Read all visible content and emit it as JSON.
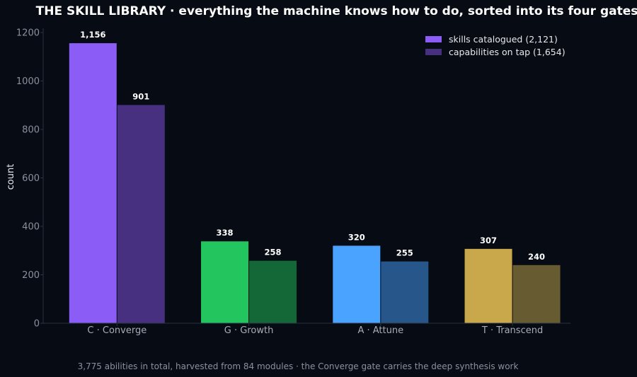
{
  "chart_data": {
    "type": "bar",
    "title": "THE SKILL LIBRARY  ·  everything the machine knows how to do, sorted into its four gates",
    "xlabel": "",
    "ylabel": "count",
    "categories": [
      "C · Converge",
      "G · Growth",
      "A · Attune",
      "T · Transcend"
    ],
    "series": [
      {
        "name": "skills catalogued (2,121)",
        "values": [
          1156,
          338,
          320,
          307
        ],
        "labels": [
          "1,156",
          "338",
          "320",
          "307"
        ],
        "colors": [
          "#8b5cf6",
          "#22c55e",
          "#4aa3ff",
          "#c9a84c"
        ]
      },
      {
        "name": "capabilities on tap (1,654)",
        "values": [
          901,
          258,
          255,
          240
        ],
        "labels": [
          "901",
          "258",
          "255",
          "240"
        ],
        "colors": [
          "#47307f",
          "#146838",
          "#27578a",
          "#665b31"
        ]
      }
    ],
    "ylim": [
      0,
      1200
    ],
    "yticks": [
      0,
      200,
      400,
      600,
      800,
      1000,
      1200
    ],
    "grid": false,
    "legend_position": "top-right",
    "footnote": "3,775 abilities in total, harvested from 84 modules  ·  the Converge gate carries the deep synthesis work",
    "colors": {
      "background": "#070b13",
      "axis": "#2a3340"
    }
  }
}
